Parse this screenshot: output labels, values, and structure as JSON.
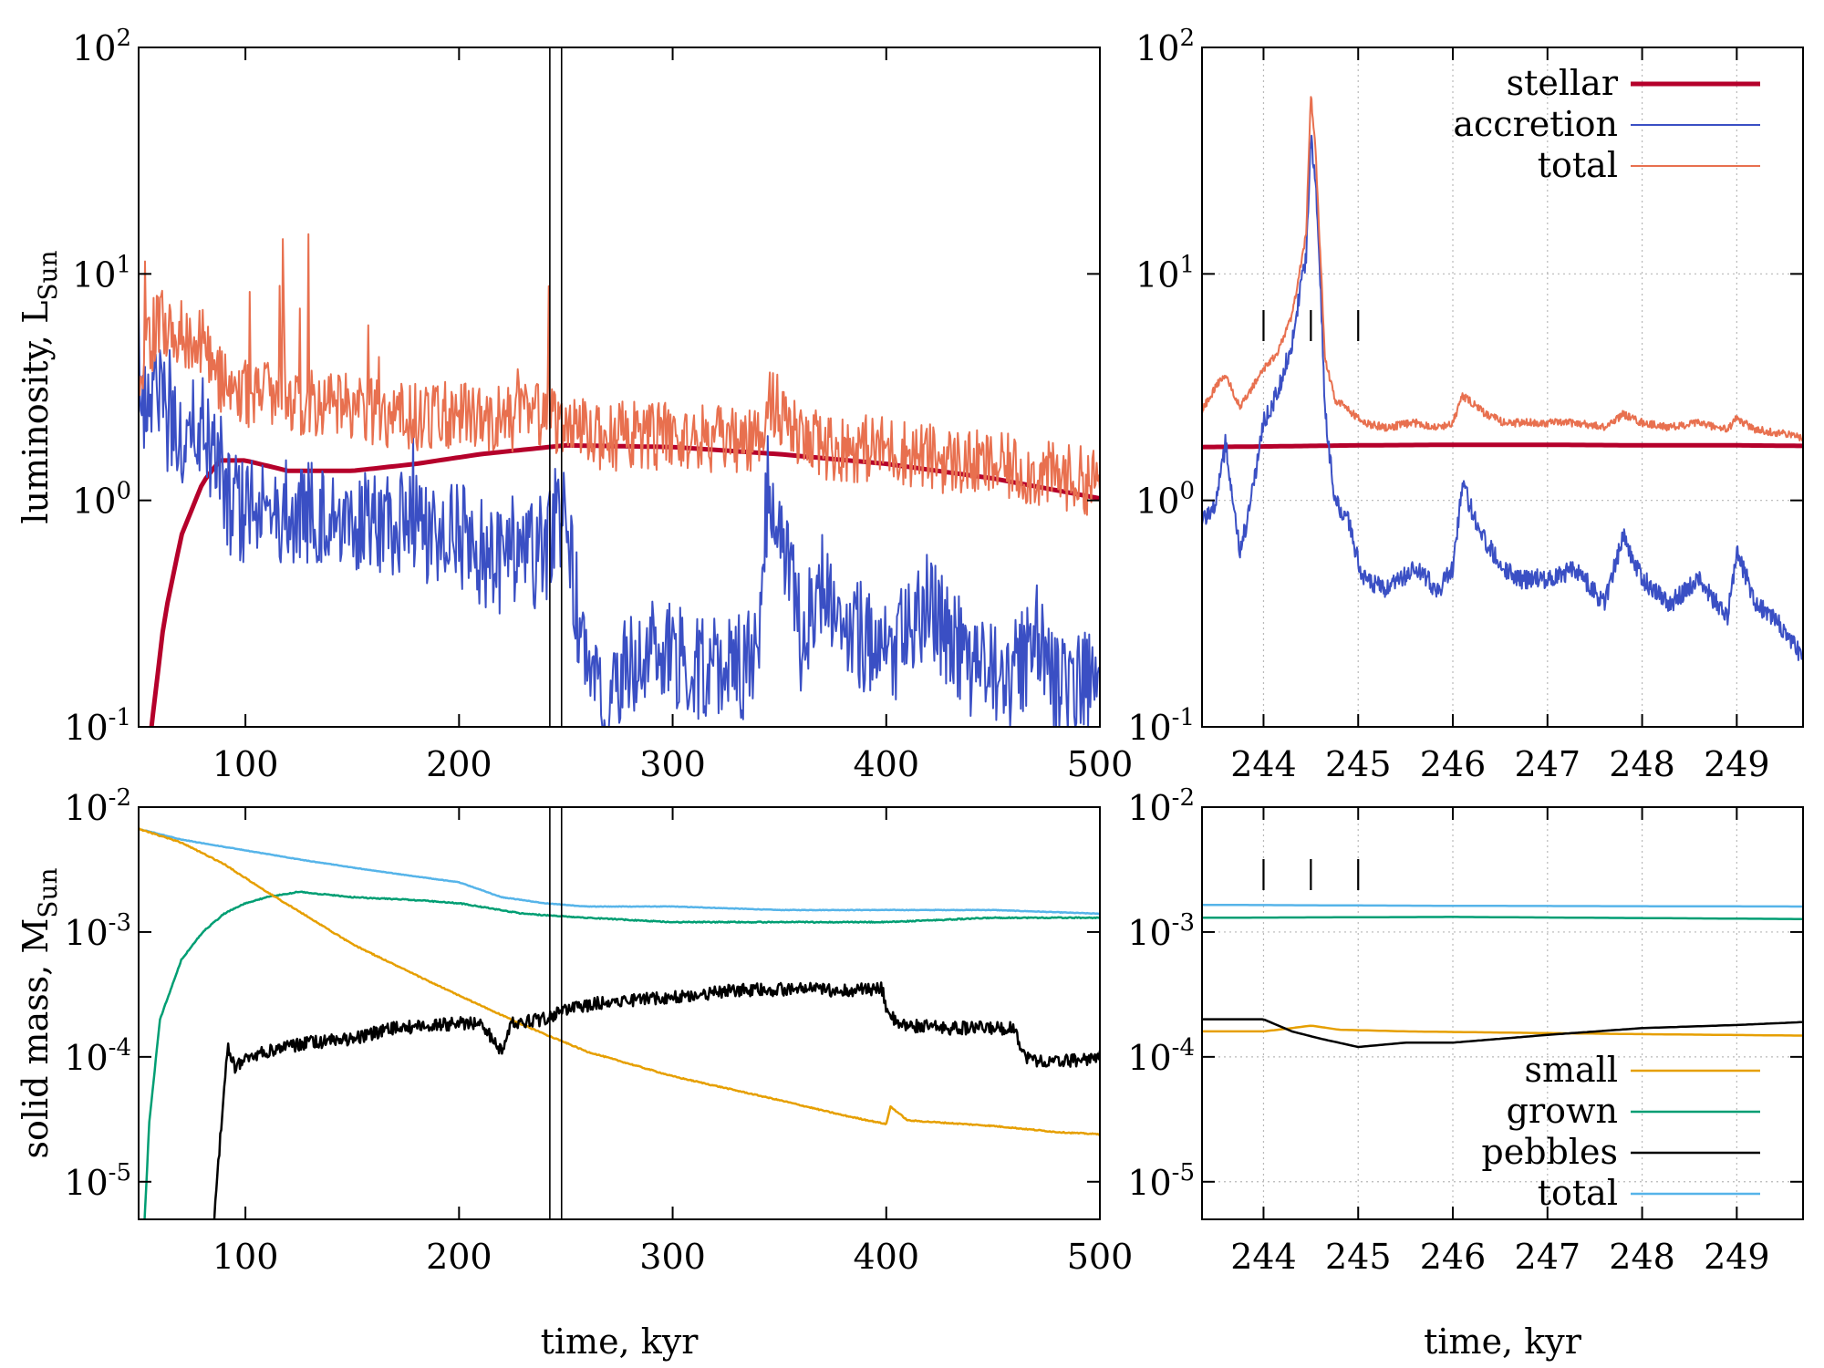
{
  "colors": {
    "stellar": "#b5002b",
    "accretion": "#3a4fc4",
    "total_lum": "#e8704f",
    "small": "#e69f00",
    "grown": "#009e73",
    "pebbles": "#000000",
    "total_mass": "#56b4e9"
  },
  "chart_data": [
    {
      "id": "lum-main",
      "type": "line",
      "ylabel": "luminosity, L",
      "ylabel_sub": "Sun",
      "xlabel": "",
      "xlim": [
        50,
        500
      ],
      "ylim": [
        0.1,
        100
      ],
      "yscale": "log",
      "x_ticks": [
        "100",
        "200",
        "300",
        "400",
        "500"
      ],
      "y_ticks": [
        {
          "base": "10",
          "exp": "-1"
        },
        {
          "base": "10",
          "exp": "0"
        },
        {
          "base": "10",
          "exp": "1"
        },
        {
          "base": "10",
          "exp": "2"
        }
      ],
      "vlines": [
        242.5,
        248
      ],
      "series": [
        {
          "key": "stellar",
          "x": [
            50,
            56,
            62,
            70,
            80,
            88,
            100,
            120,
            150,
            180,
            210,
            250,
            300,
            350,
            400,
            450,
            500
          ],
          "y": [
            0.03,
            0.1,
            0.3,
            0.7,
            1.2,
            1.5,
            1.5,
            1.35,
            1.35,
            1.45,
            1.6,
            1.75,
            1.72,
            1.6,
            1.45,
            1.25,
            1.02
          ]
        },
        {
          "key": "accretion",
          "x": [
            50,
            60,
            70,
            80,
            90,
            100,
            120,
            140,
            160,
            180,
            200,
            220,
            240,
            250,
            260,
            270,
            280,
            290,
            300,
            320,
            340,
            345,
            360,
            370,
            380,
            400,
            420,
            440,
            460,
            470,
            480,
            500
          ],
          "y": [
            3.0,
            2.5,
            2.0,
            2.2,
            1.0,
            0.9,
            0.9,
            0.85,
            0.8,
            0.75,
            0.7,
            0.5,
            0.6,
            0.8,
            0.15,
            0.11,
            0.2,
            0.22,
            0.2,
            0.18,
            0.19,
            1.4,
            0.25,
            0.45,
            0.3,
            0.2,
            0.35,
            0.18,
            0.17,
            0.25,
            0.16,
            0.16
          ]
        },
        {
          "key": "total_lum",
          "x": [
            50,
            60,
            70,
            80,
            90,
            100,
            120,
            140,
            160,
            180,
            200,
            220,
            240,
            250,
            260,
            270,
            280,
            300,
            320,
            340,
            345,
            360,
            380,
            400,
            420,
            440,
            460,
            470,
            480,
            500
          ],
          "y": [
            4.0,
            6.0,
            5.5,
            5.0,
            3.2,
            3.0,
            2.8,
            2.6,
            2.5,
            2.3,
            2.4,
            2.3,
            2.4,
            2.1,
            1.95,
            1.9,
            1.95,
            1.9,
            1.85,
            1.8,
            2.9,
            1.8,
            1.7,
            1.7,
            1.55,
            1.45,
            1.38,
            1.3,
            1.28,
            1.2
          ]
        }
      ]
    },
    {
      "id": "lum-zoom",
      "type": "line",
      "xlim": [
        243.35,
        249.7
      ],
      "ylim": [
        0.1,
        100
      ],
      "yscale": "log",
      "x_ticks": [
        "244",
        "245",
        "246",
        "247",
        "248",
        "249"
      ],
      "y_ticks": [
        {
          "base": "10",
          "exp": "-1"
        },
        {
          "base": "10",
          "exp": "0"
        },
        {
          "base": "10",
          "exp": "1"
        },
        {
          "base": "10",
          "exp": "2"
        }
      ],
      "markers_x": [
        244.0,
        244.5,
        245.0
      ],
      "legend": [
        {
          "key": "stellar",
          "label": "stellar"
        },
        {
          "key": "accretion",
          "label": "accretion"
        },
        {
          "key": "total_lum",
          "label": "total"
        }
      ],
      "series": [
        {
          "key": "stellar",
          "x": [
            243.35,
            244,
            245,
            246,
            247,
            248,
            249,
            249.7
          ],
          "y": [
            1.72,
            1.73,
            1.75,
            1.76,
            1.76,
            1.75,
            1.75,
            1.74
          ]
        },
        {
          "key": "accretion",
          "x": [
            243.35,
            243.5,
            243.6,
            243.75,
            243.85,
            244.0,
            244.15,
            244.3,
            244.45,
            244.5,
            244.55,
            244.6,
            244.65,
            244.75,
            244.9,
            245.05,
            245.3,
            245.6,
            245.85,
            246.0,
            246.1,
            246.2,
            246.35,
            246.55,
            246.7,
            247.0,
            247.3,
            247.6,
            247.8,
            248.0,
            248.3,
            248.6,
            248.9,
            249.0,
            249.2,
            249.4,
            249.7
          ],
          "y": [
            0.8,
            1.0,
            1.8,
            0.6,
            0.9,
            2.2,
            3.0,
            5.0,
            12.0,
            40.0,
            25.0,
            9.0,
            2.5,
            1.0,
            0.8,
            0.45,
            0.4,
            0.5,
            0.4,
            0.5,
            1.2,
            0.9,
            0.65,
            0.5,
            0.45,
            0.45,
            0.5,
            0.35,
            0.7,
            0.45,
            0.35,
            0.45,
            0.3,
            0.6,
            0.35,
            0.3,
            0.2
          ]
        },
        {
          "key": "total_lum",
          "x": [
            243.35,
            243.5,
            243.6,
            243.75,
            243.85,
            244.0,
            244.15,
            244.3,
            244.45,
            244.5,
            244.55,
            244.6,
            244.65,
            244.75,
            244.9,
            245.05,
            245.3,
            245.6,
            245.85,
            246.0,
            246.1,
            246.2,
            246.35,
            246.55,
            246.7,
            247.0,
            247.3,
            247.6,
            247.8,
            248.0,
            248.3,
            248.6,
            248.9,
            249.0,
            249.2,
            249.4,
            249.7
          ],
          "y": [
            2.5,
            3.2,
            3.6,
            2.6,
            3.0,
            3.8,
            4.5,
            6.5,
            15.0,
            62.0,
            35.0,
            12.0,
            4.3,
            2.8,
            2.5,
            2.2,
            2.1,
            2.2,
            2.1,
            2.2,
            2.9,
            2.7,
            2.4,
            2.2,
            2.2,
            2.2,
            2.2,
            2.1,
            2.4,
            2.2,
            2.1,
            2.2,
            2.05,
            2.3,
            2.05,
            2.0,
            1.9
          ]
        }
      ]
    },
    {
      "id": "mass-main",
      "type": "line",
      "ylabel": "solid mass, M",
      "ylabel_sub": "Sun",
      "xlabel": "time, kyr",
      "xlim": [
        50,
        500
      ],
      "ylim": [
        5e-06,
        0.01
      ],
      "yscale": "log",
      "x_ticks": [
        "100",
        "200",
        "300",
        "400",
        "500"
      ],
      "y_ticks": [
        {
          "base": "10",
          "exp": "-5"
        },
        {
          "base": "10",
          "exp": "-4"
        },
        {
          "base": "10",
          "exp": "-3"
        },
        {
          "base": "10",
          "exp": "-2"
        }
      ],
      "vlines": [
        242.5,
        248
      ],
      "series": [
        {
          "key": "total_mass",
          "x": [
            50,
            70,
            100,
            130,
            160,
            200,
            220,
            240,
            260,
            300,
            350,
            400,
            450,
            500
          ],
          "y": [
            0.0067,
            0.0055,
            0.0045,
            0.0037,
            0.0031,
            0.0025,
            0.0019,
            0.0017,
            0.0016,
            0.0016,
            0.0015,
            0.0015,
            0.0015,
            0.0014
          ]
        },
        {
          "key": "grown",
          "x": [
            50,
            55,
            60,
            70,
            80,
            90,
            100,
            110,
            125,
            150,
            180,
            200,
            230,
            260,
            300,
            350,
            400,
            450,
            500
          ],
          "y": [
            5e-07,
            3e-05,
            0.0002,
            0.0006,
            0.001,
            0.0014,
            0.0017,
            0.0019,
            0.0021,
            0.0019,
            0.0018,
            0.0017,
            0.0014,
            0.0013,
            0.0012,
            0.0012,
            0.0012,
            0.0013,
            0.0013
          ]
        },
        {
          "key": "small",
          "x": [
            50,
            70,
            90,
            110,
            130,
            150,
            180,
            200,
            230,
            260,
            300,
            350,
            380,
            400,
            402,
            410,
            450,
            480,
            500
          ],
          "y": [
            0.0067,
            0.0052,
            0.0035,
            0.0021,
            0.0013,
            0.0008,
            0.00045,
            0.00031,
            0.00018,
            0.00011,
            7e-05,
            4.5e-05,
            3.4e-05,
            2.9e-05,
            4e-05,
            3.1e-05,
            2.8e-05,
            2.5e-05,
            2.4e-05
          ]
        },
        {
          "key": "pebbles",
          "x": [
            85,
            88,
            90,
            92,
            95,
            100,
            110,
            130,
            150,
            170,
            190,
            210,
            220,
            225,
            240,
            250,
            270,
            300,
            330,
            360,
            380,
            398,
            400,
            405,
            430,
            460,
            465,
            475,
            490,
            500
          ],
          "y": [
            4e-06,
            2e-05,
            6e-05,
            0.00012,
            8e-05,
            0.0001,
            0.00011,
            0.00013,
            0.00014,
            0.00017,
            0.00018,
            0.00019,
            0.00011,
            0.00019,
            0.0002,
            0.00024,
            0.00028,
            0.0003,
            0.00034,
            0.00035,
            0.00034,
            0.00035,
            0.00025,
            0.00018,
            0.00017,
            0.00017,
            0.0001,
            9e-05,
            9.5e-05,
            0.0001
          ]
        }
      ]
    },
    {
      "id": "mass-zoom",
      "type": "line",
      "xlabel": "time, kyr",
      "xlim": [
        243.35,
        249.7
      ],
      "ylim": [
        5e-06,
        0.01
      ],
      "yscale": "log",
      "x_ticks": [
        "244",
        "245",
        "246",
        "247",
        "248",
        "249"
      ],
      "y_ticks": [
        {
          "base": "10",
          "exp": "-5"
        },
        {
          "base": "10",
          "exp": "-4"
        },
        {
          "base": "10",
          "exp": "-3"
        },
        {
          "base": "10",
          "exp": "-2"
        }
      ],
      "markers_x": [
        244.0,
        244.5,
        245.0
      ],
      "legend": [
        {
          "key": "small",
          "label": "small"
        },
        {
          "key": "grown",
          "label": "grown"
        },
        {
          "key": "pebbles",
          "label": "pebbles"
        },
        {
          "key": "total_mass",
          "label": "total"
        }
      ],
      "series": [
        {
          "key": "total_mass",
          "x": [
            243.35,
            246,
            249.7
          ],
          "y": [
            0.00165,
            0.00162,
            0.0016
          ]
        },
        {
          "key": "grown",
          "x": [
            243.35,
            246,
            249.7
          ],
          "y": [
            0.0013,
            0.00132,
            0.00127
          ]
        },
        {
          "key": "small",
          "x": [
            243.35,
            244.0,
            244.3,
            244.5,
            244.8,
            245.5,
            247,
            248,
            249.7
          ],
          "y": [
            0.00016,
            0.00016,
            0.00017,
            0.000178,
            0.000165,
            0.00016,
            0.000155,
            0.000152,
            0.000148
          ]
        },
        {
          "key": "pebbles",
          "x": [
            243.35,
            244.0,
            244.3,
            244.6,
            245.0,
            245.5,
            246.0,
            247.0,
            248.0,
            249.0,
            249.7
          ],
          "y": [
            0.0002,
            0.0002,
            0.00016,
            0.00014,
            0.00012,
            0.00013,
            0.00013,
            0.00015,
            0.00017,
            0.00018,
            0.00019
          ]
        }
      ]
    }
  ]
}
